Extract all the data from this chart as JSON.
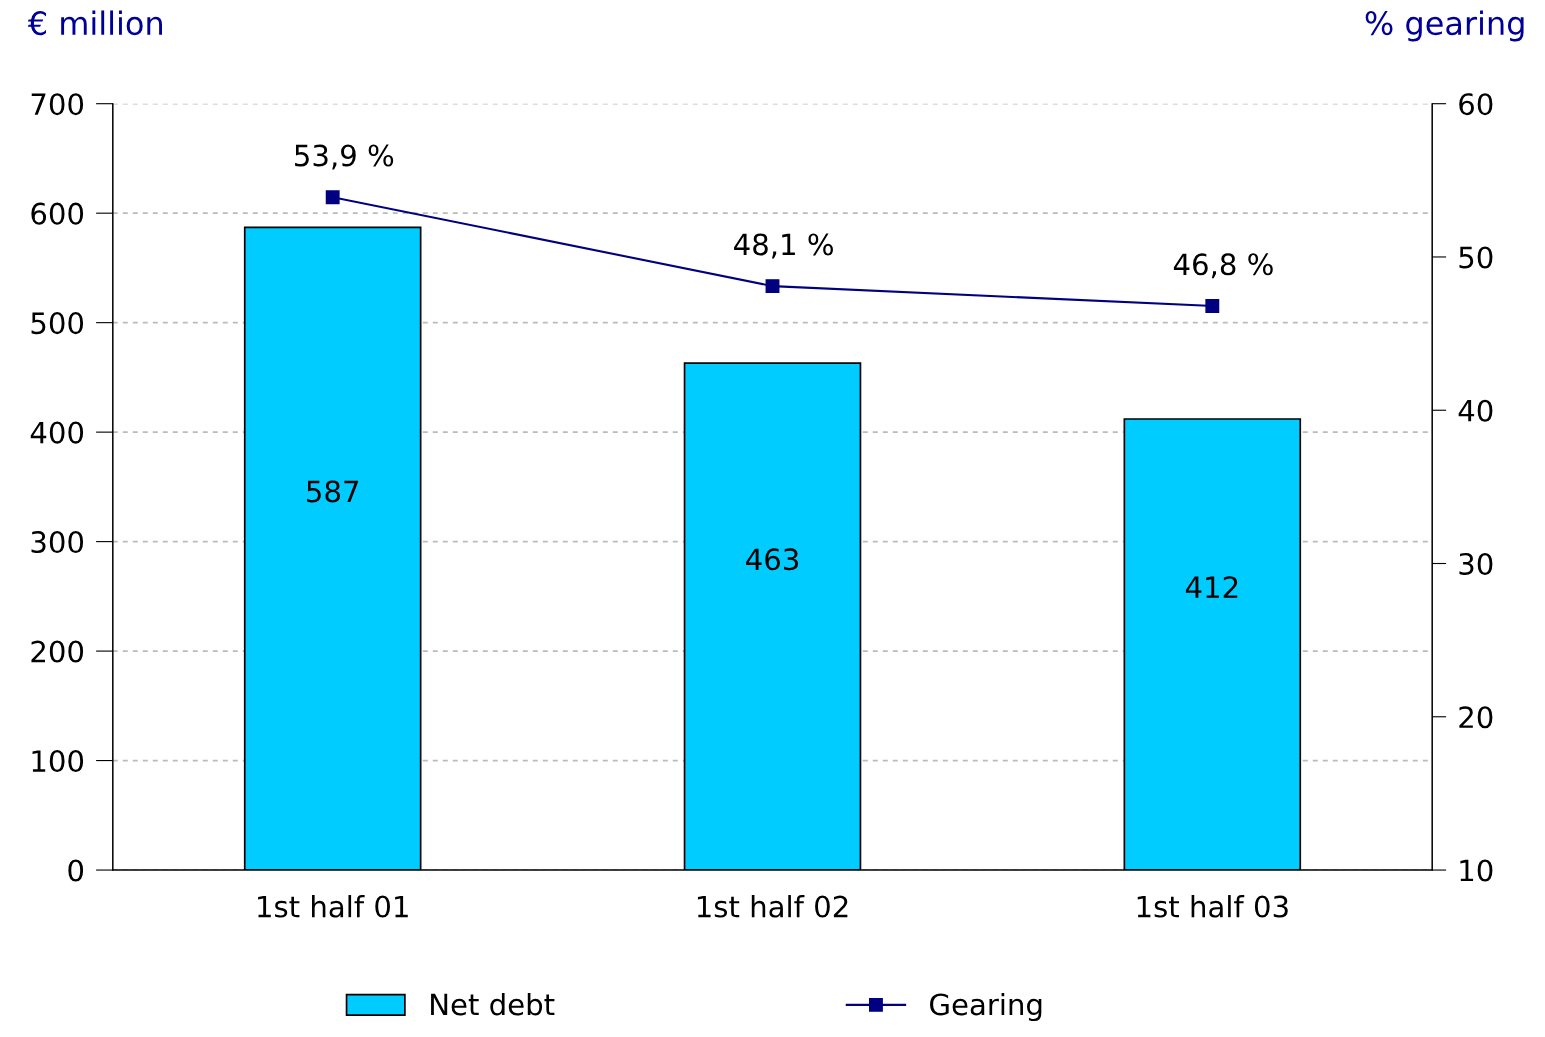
{
  "chart_data": {
    "type": "bar",
    "ylabel": "€ million",
    "y2label": "% gearing",
    "categories": [
      "1st half 01",
      "1st half 02",
      "1st half 03"
    ],
    "series": [
      {
        "name": "Net debt",
        "color": "#00ccff",
        "values": [
          587,
          463,
          412
        ],
        "data_labels": true
      },
      {
        "name": "Gearing",
        "type": "line",
        "axis": "y2",
        "color": "#000080",
        "values": [
          53.9,
          48.1,
          46.8
        ],
        "value_labels": [
          "53,9 %",
          "48,1 %",
          "46,8 %"
        ],
        "marker": "square",
        "line_style": "solid"
      }
    ],
    "ylim": [
      0,
      700
    ],
    "yticks": [
      0,
      100,
      200,
      300,
      400,
      500,
      600,
      700
    ],
    "y2lim": [
      10,
      60
    ],
    "y2ticks": [
      10,
      20,
      30,
      40,
      50,
      60
    ],
    "grid": "y",
    "legend": "bottom"
  }
}
